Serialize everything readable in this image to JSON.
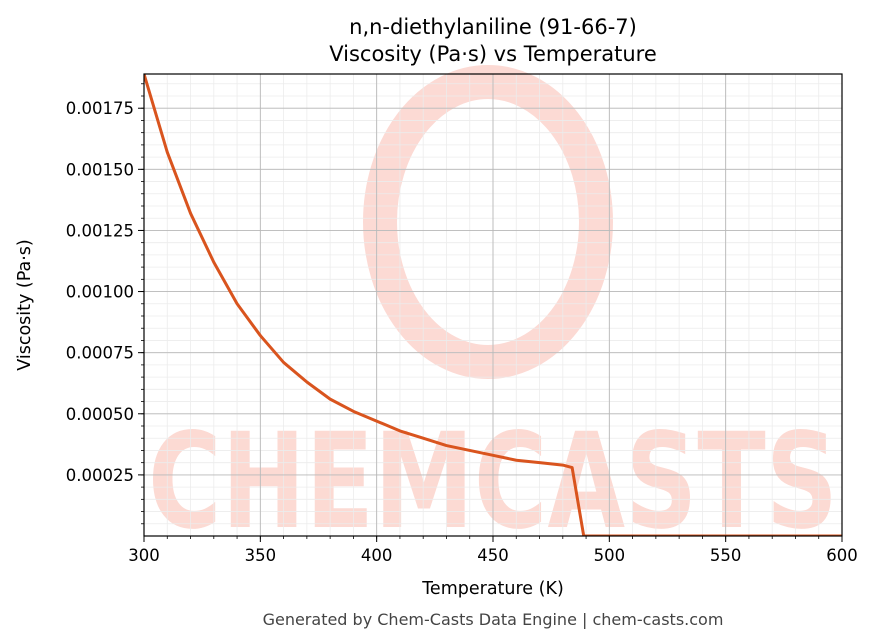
{
  "chart_data": {
    "type": "line",
    "title": "n,n-diethylaniline (91-66-7)",
    "subtitle": "Viscosity (Pa·s) vs Temperature",
    "xlabel": "Temperature (K)",
    "ylabel": "Viscosity (Pa·s)",
    "xlim": [
      300,
      600
    ],
    "ylim": [
      0.0,
      0.00189
    ],
    "xticks": [
      300,
      350,
      400,
      450,
      500,
      550,
      600
    ],
    "xtick_labels": [
      "300",
      "350",
      "400",
      "450",
      "500",
      "550",
      "600"
    ],
    "yticks": [
      0.00025,
      0.0005,
      0.00075,
      0.001,
      0.00125,
      0.0015,
      0.00175
    ],
    "ytick_labels": [
      "0.00025",
      "0.00050",
      "0.00075",
      "0.00100",
      "0.00125",
      "0.00150",
      "0.00175"
    ],
    "grid": true,
    "series": [
      {
        "color": "#d9541e",
        "x": [
          300,
          310,
          320,
          330,
          340,
          350,
          360,
          370,
          380,
          390,
          400,
          410,
          420,
          430,
          440,
          450,
          460,
          470,
          480,
          484,
          489,
          500,
          550,
          600
        ],
        "y": [
          0.00189,
          0.00157,
          0.00132,
          0.00112,
          0.00095,
          0.00082,
          0.00071,
          0.00063,
          0.00056,
          0.00051,
          0.00047,
          0.00043,
          0.0004,
          0.00037,
          0.00035,
          0.00033,
          0.00031,
          0.0003,
          0.00029,
          0.00028,
          0.0,
          0.0,
          0.0,
          0.0
        ]
      }
    ]
  },
  "watermark": {
    "text": "CHEMCASTS",
    "color": "#fcd4cc"
  },
  "footer": "Generated by Chem-Casts Data Engine | chem-casts.com"
}
